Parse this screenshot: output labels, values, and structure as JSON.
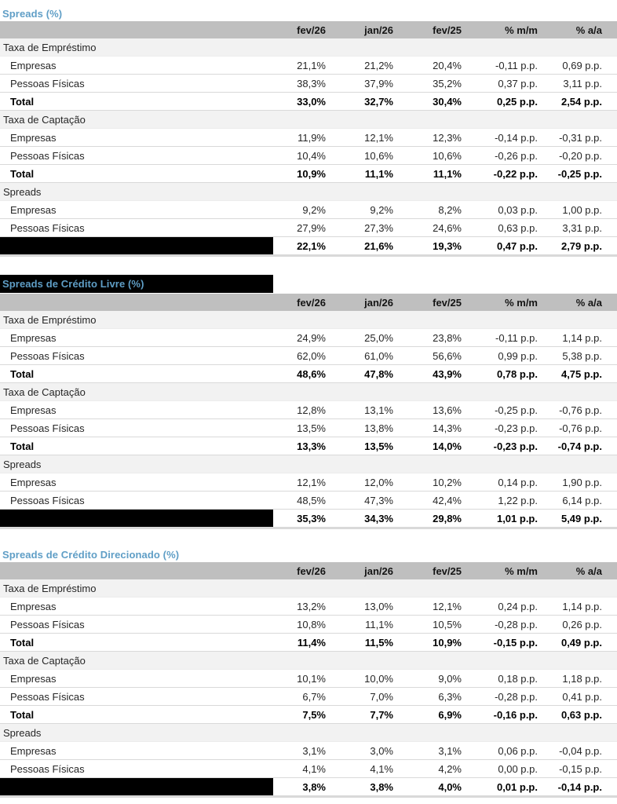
{
  "colors": {
    "title": "#5f9ec6",
    "header_bg": "#bfbfbf",
    "section_bg": "#f2f2f2",
    "row_border": "#d9d9d9",
    "redaction": "#000000",
    "text": "#262626"
  },
  "columns": [
    "fev/26",
    "jan/26",
    "fev/25",
    "% m/m",
    "% a/a"
  ],
  "tables": [
    {
      "title": "Spreads (%)",
      "title_redacted": false,
      "sections": [
        {
          "label": "Taxa de Empréstimo",
          "rows": [
            {
              "label": "Empresas",
              "style": "normal",
              "redacted": false,
              "values": [
                "21,1%",
                "21,2%",
                "20,4%",
                "-0,11 p.p.",
                "0,69 p.p."
              ]
            },
            {
              "label": "Pessoas Físicas",
              "style": "normal",
              "redacted": false,
              "values": [
                "38,3%",
                "37,9%",
                "35,2%",
                "0,37 p.p.",
                "3,11 p.p."
              ]
            },
            {
              "label": "Total",
              "style": "total",
              "redacted": false,
              "values": [
                "33,0%",
                "32,7%",
                "30,4%",
                "0,25 p.p.",
                "2,54 p.p."
              ]
            }
          ]
        },
        {
          "label": "Taxa de Captação",
          "rows": [
            {
              "label": "Empresas",
              "style": "normal",
              "redacted": false,
              "values": [
                "11,9%",
                "12,1%",
                "12,3%",
                "-0,14 p.p.",
                "-0,31 p.p."
              ]
            },
            {
              "label": "Pessoas Físicas",
              "style": "normal",
              "redacted": false,
              "values": [
                "10,4%",
                "10,6%",
                "10,6%",
                "-0,26 p.p.",
                "-0,20 p.p."
              ]
            },
            {
              "label": "Total",
              "style": "total",
              "redacted": false,
              "values": [
                "10,9%",
                "11,1%",
                "11,1%",
                "-0,22 p.p.",
                "-0,25 p.p."
              ]
            }
          ]
        },
        {
          "label": "Spreads",
          "rows": [
            {
              "label": "Empresas",
              "style": "normal",
              "redacted": false,
              "values": [
                "9,2%",
                "9,2%",
                "8,2%",
                "0,03 p.p.",
                "1,00 p.p."
              ]
            },
            {
              "label": "Pessoas Físicas",
              "style": "normal",
              "redacted": false,
              "values": [
                "27,9%",
                "27,3%",
                "24,6%",
                "0,63 p.p.",
                "3,31 p.p."
              ]
            },
            {
              "label": "",
              "style": "total",
              "redacted": true,
              "values": [
                "22,1%",
                "21,6%",
                "19,3%",
                "0,47 p.p.",
                "2,79 p.p."
              ]
            }
          ]
        }
      ]
    },
    {
      "title": "Spreads de Crédito Livre (%)",
      "title_redacted": true,
      "sections": [
        {
          "label": "Taxa de Empréstimo",
          "rows": [
            {
              "label": "Empresas",
              "style": "normal",
              "redacted": false,
              "values": [
                "24,9%",
                "25,0%",
                "23,8%",
                "-0,11 p.p.",
                "1,14 p.p."
              ]
            },
            {
              "label": "Pessoas Físicas",
              "style": "normal",
              "redacted": false,
              "values": [
                "62,0%",
                "61,0%",
                "56,6%",
                "0,99 p.p.",
                "5,38 p.p."
              ]
            },
            {
              "label": "Total",
              "style": "total",
              "redacted": false,
              "values": [
                "48,6%",
                "47,8%",
                "43,9%",
                "0,78 p.p.",
                "4,75 p.p."
              ]
            }
          ]
        },
        {
          "label": "Taxa de Captação",
          "rows": [
            {
              "label": "Empresas",
              "style": "normal",
              "redacted": false,
              "values": [
                "12,8%",
                "13,1%",
                "13,6%",
                "-0,25 p.p.",
                "-0,76 p.p."
              ]
            },
            {
              "label": "Pessoas Físicas",
              "style": "normal",
              "redacted": false,
              "values": [
                "13,5%",
                "13,8%",
                "14,3%",
                "-0,23 p.p.",
                "-0,76 p.p."
              ]
            },
            {
              "label": "Total",
              "style": "total",
              "redacted": false,
              "values": [
                "13,3%",
                "13,5%",
                "14,0%",
                "-0,23 p.p.",
                "-0,74 p.p."
              ]
            }
          ]
        },
        {
          "label": "Spreads",
          "rows": [
            {
              "label": "Empresas",
              "style": "normal",
              "redacted": false,
              "values": [
                "12,1%",
                "12,0%",
                "10,2%",
                "0,14 p.p.",
                "1,90 p.p."
              ]
            },
            {
              "label": "Pessoas Físicas",
              "style": "normal",
              "redacted": false,
              "values": [
                "48,5%",
                "47,3%",
                "42,4%",
                "1,22 p.p.",
                "6,14 p.p."
              ]
            },
            {
              "label": "",
              "style": "total",
              "redacted": true,
              "values": [
                "35,3%",
                "34,3%",
                "29,8%",
                "1,01 p.p.",
                "5,49 p.p."
              ]
            }
          ]
        }
      ]
    },
    {
      "title": "Spreads de Crédito Direcionado (%)",
      "title_redacted": false,
      "sections": [
        {
          "label": "Taxa de Empréstimo",
          "rows": [
            {
              "label": "Empresas",
              "style": "normal",
              "redacted": false,
              "values": [
                "13,2%",
                "13,0%",
                "12,1%",
                "0,24 p.p.",
                "1,14 p.p."
              ]
            },
            {
              "label": "Pessoas Físicas",
              "style": "normal",
              "redacted": false,
              "values": [
                "10,8%",
                "11,1%",
                "10,5%",
                "-0,28 p.p.",
                "0,26 p.p."
              ]
            },
            {
              "label": "Total",
              "style": "total",
              "redacted": false,
              "values": [
                "11,4%",
                "11,5%",
                "10,9%",
                "-0,15 p.p.",
                "0,49 p.p."
              ]
            }
          ]
        },
        {
          "label": "Taxa de Captação",
          "rows": [
            {
              "label": "Empresas",
              "style": "normal",
              "redacted": false,
              "values": [
                "10,1%",
                "10,0%",
                "9,0%",
                "0,18 p.p.",
                "1,18 p.p."
              ]
            },
            {
              "label": "Pessoas Físicas",
              "style": "normal",
              "redacted": false,
              "values": [
                "6,7%",
                "7,0%",
                "6,3%",
                "-0,28 p.p.",
                "0,41 p.p."
              ]
            },
            {
              "label": "Total",
              "style": "total",
              "redacted": false,
              "values": [
                "7,5%",
                "7,7%",
                "6,9%",
                "-0,16 p.p.",
                "0,63 p.p."
              ]
            }
          ]
        },
        {
          "label": "Spreads",
          "rows": [
            {
              "label": "Empresas",
              "style": "normal",
              "redacted": false,
              "values": [
                "3,1%",
                "3,0%",
                "3,1%",
                "0,06 p.p.",
                "-0,04 p.p."
              ]
            },
            {
              "label": "Pessoas Físicas",
              "style": "normal",
              "redacted": false,
              "values": [
                "4,1%",
                "4,1%",
                "4,2%",
                "0,00 p.p.",
                "-0,15 p.p."
              ]
            },
            {
              "label": "",
              "style": "total",
              "redacted": true,
              "values": [
                "3,8%",
                "3,8%",
                "4,0%",
                "0,01 p.p.",
                "-0,14 p.p."
              ]
            }
          ]
        }
      ]
    }
  ]
}
